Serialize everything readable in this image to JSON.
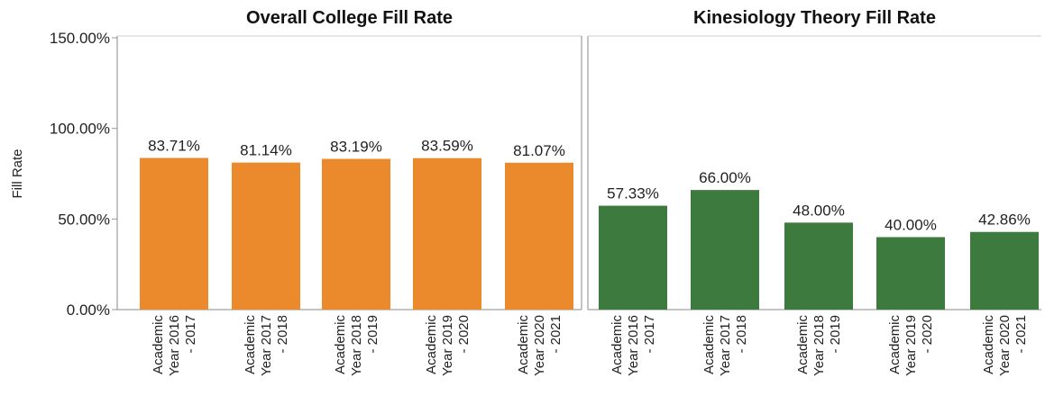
{
  "chart_data": {
    "type": "bar",
    "ylabel": "Fill Rate",
    "ylim": [
      0,
      150
    ],
    "yticks": [
      "150.00%",
      "100.00%",
      "50.00%",
      "0.00%"
    ],
    "ytick_values": [
      150,
      100,
      50,
      0
    ],
    "grid": false,
    "panels": [
      {
        "title": "Overall College Fill Rate",
        "color": "#ea8a2c",
        "categories": [
          [
            "Academic",
            "Year 2016",
            "- 2017"
          ],
          [
            "Academic",
            "Year 2017",
            "- 2018"
          ],
          [
            "Academic",
            "Year 2018",
            "- 2019"
          ],
          [
            "Academic",
            "Year 2019",
            "- 2020"
          ],
          [
            "Academic",
            "Year 2020",
            "- 2021"
          ]
        ],
        "values": [
          83.71,
          81.14,
          83.19,
          83.59,
          81.07
        ],
        "labels": [
          "83.71%",
          "81.14%",
          "83.19%",
          "83.59%",
          "81.07%"
        ]
      },
      {
        "title": "Kinesiology Theory Fill Rate",
        "color": "#3d7a3d",
        "categories": [
          [
            "Academic",
            "Year 2016",
            "- 2017"
          ],
          [
            "Academic",
            "Year 2017",
            "- 2018"
          ],
          [
            "Academic",
            "Year 2018",
            "- 2019"
          ],
          [
            "Academic",
            "Year 2019",
            "- 2020"
          ],
          [
            "Academic",
            "Year 2020",
            "- 2021"
          ]
        ],
        "values": [
          57.33,
          66.0,
          48.0,
          40.0,
          42.86
        ],
        "labels": [
          "57.33%",
          "66.00%",
          "48.00%",
          "40.00%",
          "42.86%"
        ]
      }
    ]
  }
}
